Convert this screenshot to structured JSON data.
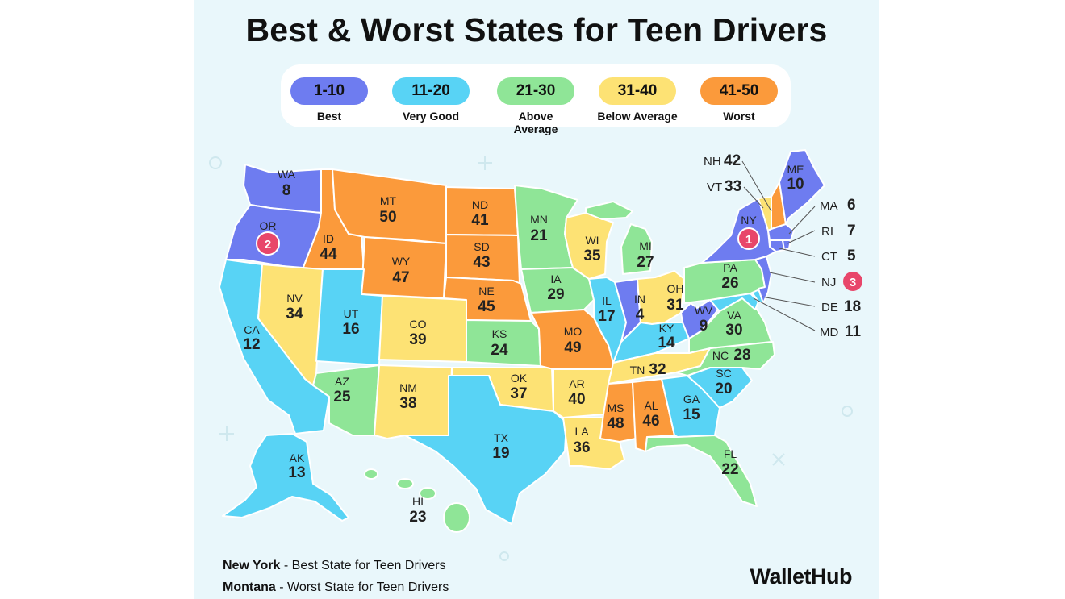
{
  "title": "Best & Worst States for Teen Drivers",
  "colors": {
    "best": "#6e7cf0",
    "very_good": "#58d3f5",
    "above_average": "#8fe597",
    "below_average": "#fde274",
    "worst": "#fb9a3b",
    "badge": "#e8466a"
  },
  "legend": [
    {
      "range": "1-10",
      "label": "Best",
      "color": "#6e7cf0"
    },
    {
      "range": "11-20",
      "label": "Very Good",
      "color": "#58d3f5"
    },
    {
      "range": "21-30",
      "label": "Above Average",
      "color": "#8fe597"
    },
    {
      "range": "31-40",
      "label": "Below Average",
      "color": "#fde274"
    },
    {
      "range": "41-50",
      "label": "Worst",
      "color": "#fb9a3b"
    }
  ],
  "states": {
    "WA": "8",
    "OR": "2",
    "CA": "12",
    "ID": "44",
    "NV": "34",
    "MT": "50",
    "WY": "47",
    "UT": "16",
    "AZ": "25",
    "CO": "39",
    "NM": "38",
    "ND": "41",
    "SD": "43",
    "NE": "45",
    "KS": "24",
    "OK": "37",
    "TX": "19",
    "MN": "21",
    "IA": "29",
    "MO": "49",
    "AR": "40",
    "LA": "36",
    "WI": "35",
    "IL": "17",
    "MI": "27",
    "IN": "4",
    "OH": "31",
    "KY": "14",
    "TN": "32",
    "MS": "48",
    "AL": "46",
    "GA": "15",
    "FL": "22",
    "SC": "20",
    "NC": "28",
    "VA": "30",
    "WV": "9",
    "PA": "26",
    "NY": "1",
    "ME": "10",
    "AK": "13",
    "HI": "23"
  },
  "northeast": {
    "NH": "42",
    "VT": "33",
    "MA": "6",
    "RI": "7",
    "CT": "5",
    "NJ": "3",
    "DE": "18",
    "MD": "11"
  },
  "footer": {
    "line1_state": "New York",
    "line1_rest": " - Best State for Teen Drivers",
    "line2_state": "Montana",
    "line2_rest": " - Worst State for Teen Drivers"
  },
  "brand": "WalletHub"
}
